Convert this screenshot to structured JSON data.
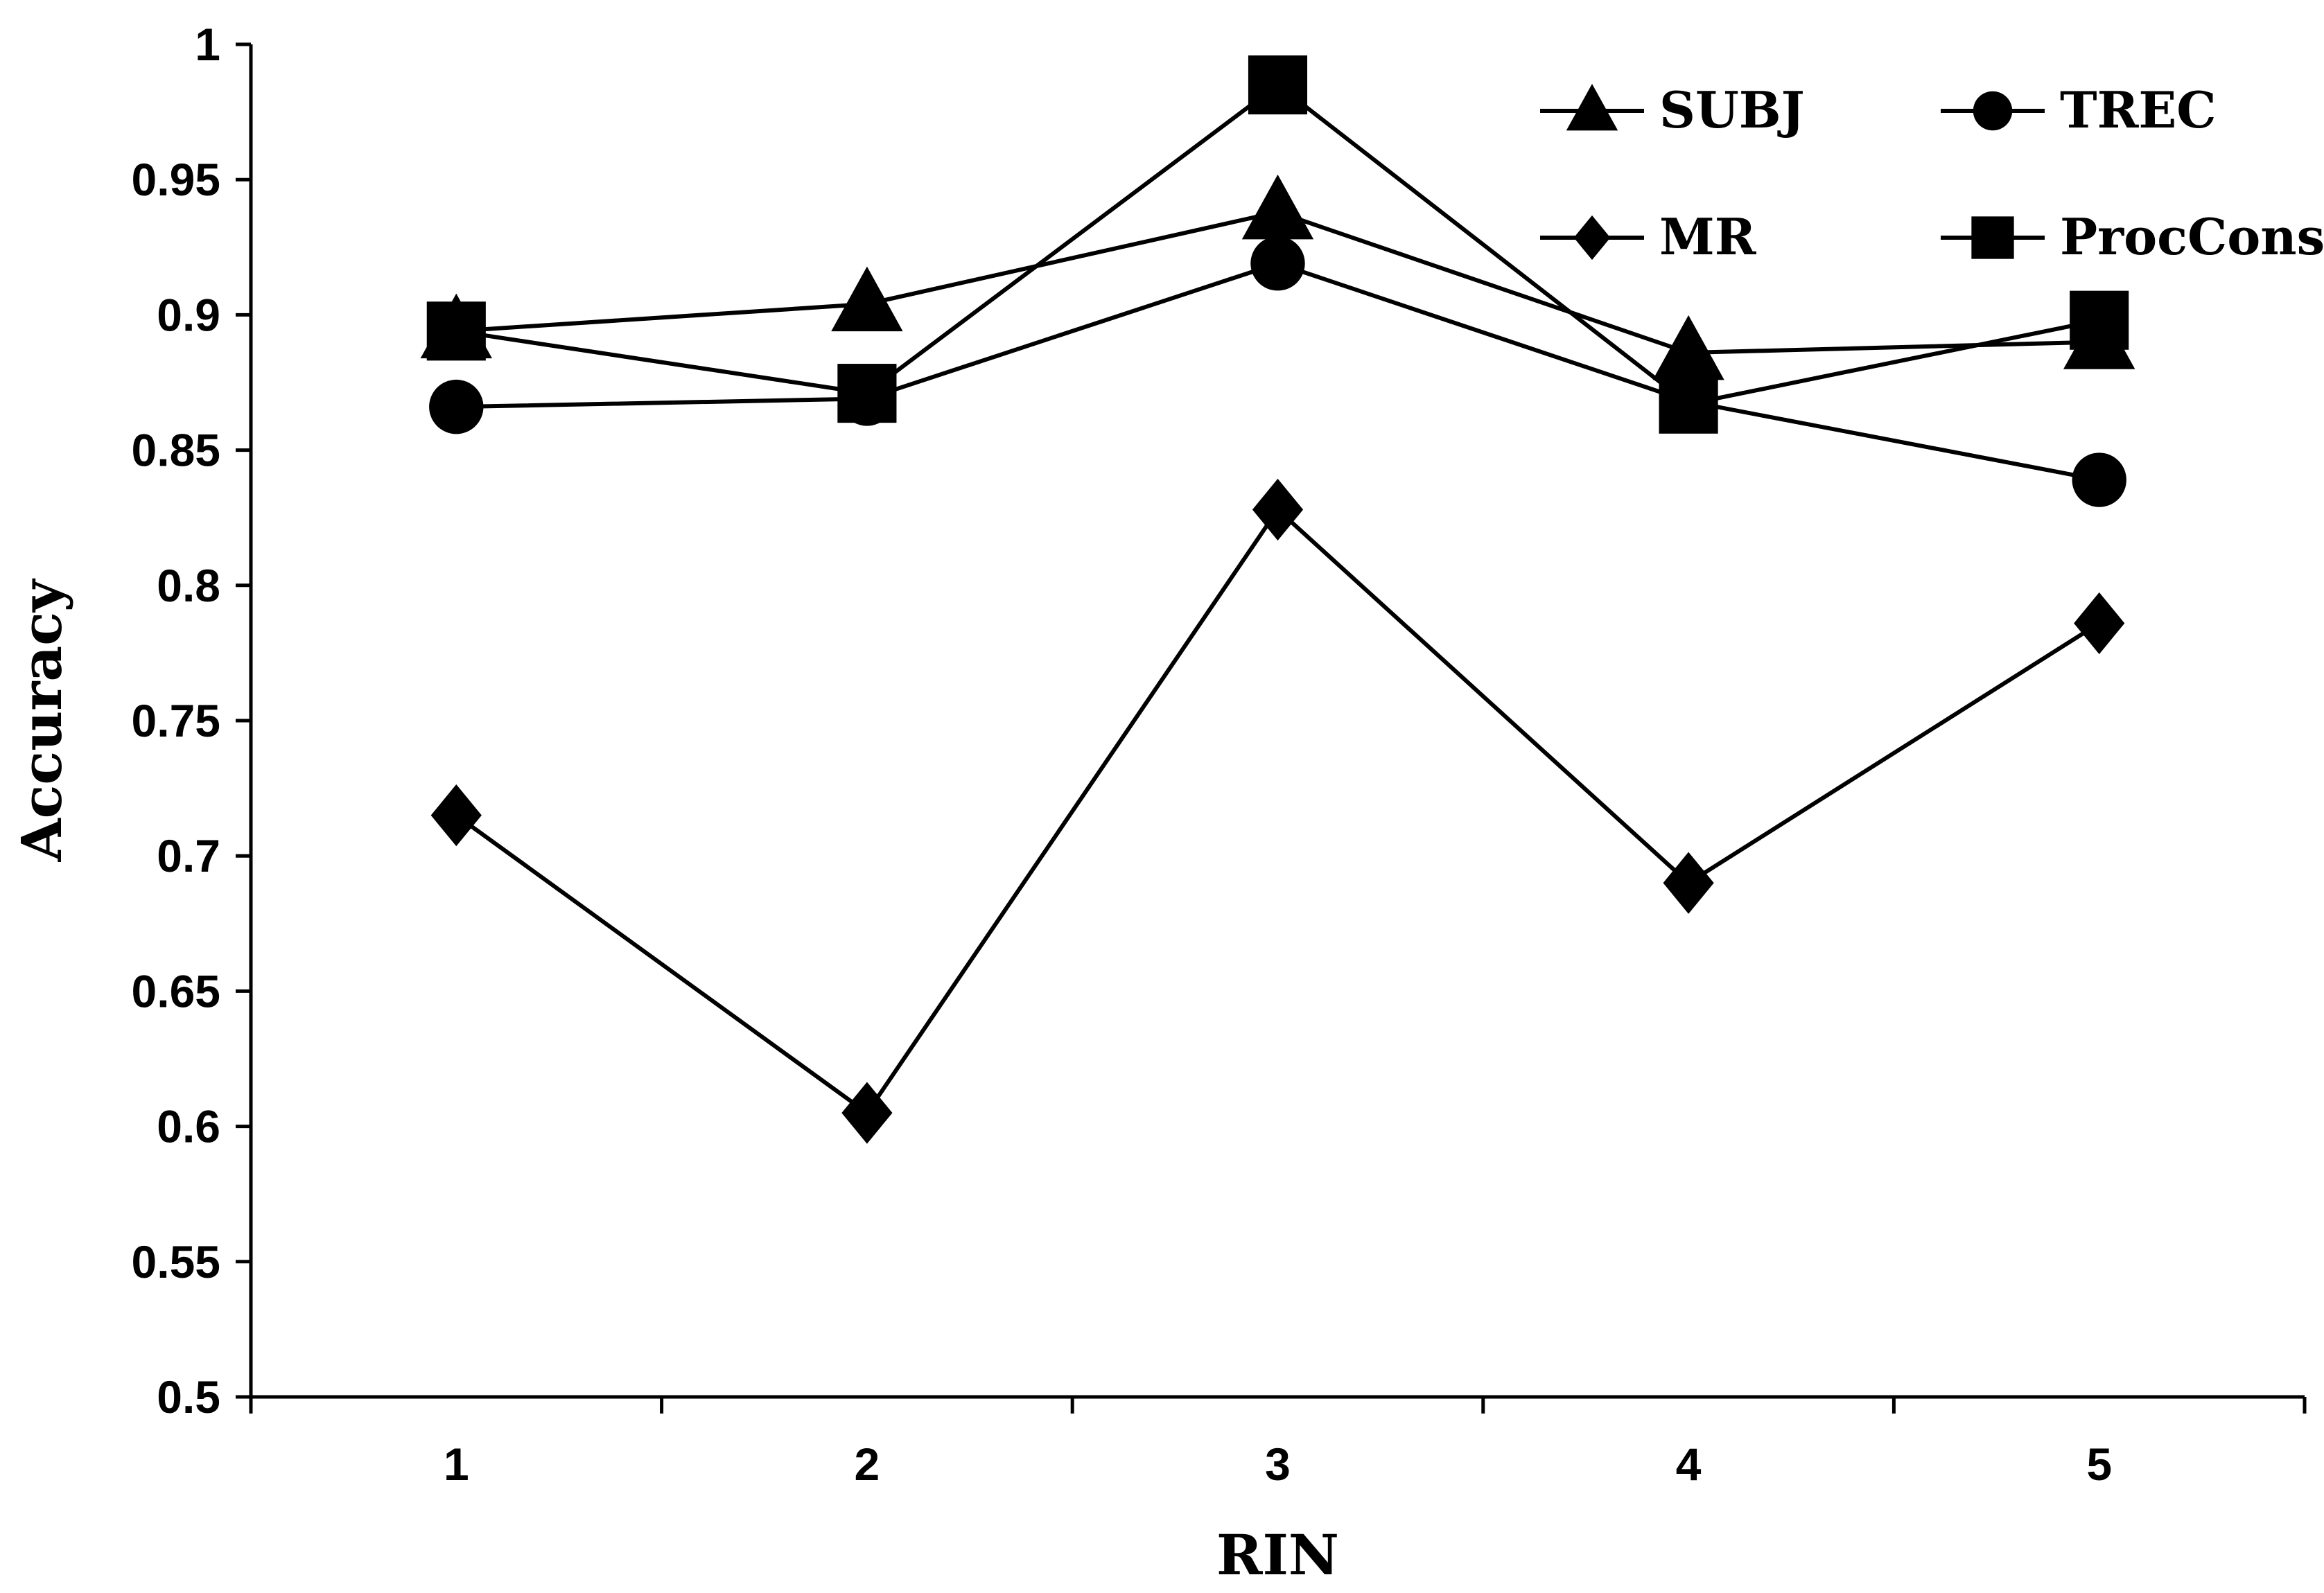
{
  "chart_data": {
    "type": "line",
    "xlabel": "RIN",
    "ylabel": "Accuracy",
    "categories": [
      "1",
      "2",
      "3",
      "4",
      "5"
    ],
    "ylim": [
      0.5,
      1
    ],
    "yticks": [
      "0.5",
      "0.55",
      "0.6",
      "0.65",
      "0.7",
      "0.75",
      "0.8",
      "0.85",
      "0.9",
      "0.95",
      "1"
    ],
    "grid": false,
    "legend_position": "top-right",
    "series": [
      {
        "name": "SUBJ",
        "marker": "triangle",
        "values": [
          0.894,
          0.904,
          0.938,
          0.886,
          0.89
        ]
      },
      {
        "name": "TREC",
        "marker": "circle",
        "values": [
          0.866,
          0.869,
          0.919,
          0.868,
          0.839
        ]
      },
      {
        "name": "MR",
        "marker": "diamond",
        "values": [
          0.715,
          0.605,
          0.828,
          0.69,
          0.786
        ]
      },
      {
        "name": "ProcCons",
        "marker": "square",
        "values": [
          0.894,
          0.871,
          0.985,
          0.867,
          0.898
        ]
      }
    ],
    "line_color": "#000000",
    "background": "#ffffff"
  }
}
